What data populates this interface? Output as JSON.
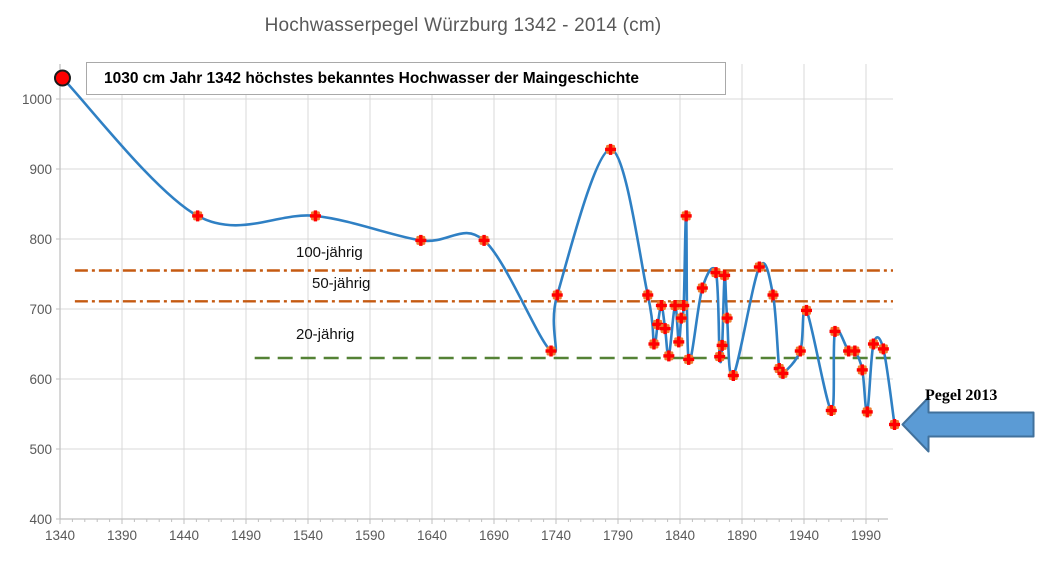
{
  "title": "Hochwasserpegel Würzburg 1342 - 2014 (cm)",
  "annotation": "1030 cm Jahr 1342 höchstes bekanntes Hochwasser der Maingeschichte",
  "arrow": {
    "label": "Pegel 2013"
  },
  "colors": {
    "line": "#2F80C4",
    "marker_fill": "#ED7D31",
    "marker_cross": "#FF0000",
    "first_point_fill": "#FF0000",
    "first_point_stroke": "#1a1a1a",
    "threshold_orange": "#C55A11",
    "threshold_green": "#548235",
    "arrow_fill": "#5B9BD5",
    "arrow_stroke": "#41719C",
    "grid": "#D9D9D9",
    "axis": "#BFBFBF",
    "tick_text": "#595959"
  },
  "chart_data": {
    "type": "line",
    "title": "Hochwasserpegel Würzburg 1342 - 2014 (cm)",
    "series_name": "Hochwasserpegel (cm)",
    "smooth": true,
    "grid": true,
    "xlim": [
      1340,
      2010
    ],
    "ylim": [
      400,
      1050
    ],
    "x_ticks": [
      1340,
      1390,
      1440,
      1490,
      1540,
      1590,
      1640,
      1690,
      1740,
      1790,
      1840,
      1890,
      1940,
      1990
    ],
    "y_ticks": [
      400,
      500,
      600,
      700,
      800,
      900,
      1000
    ],
    "x": [
      1342,
      1451,
      1546,
      1631,
      1682,
      1736,
      1741,
      1784,
      1814,
      1819,
      1822,
      1825,
      1828,
      1831,
      1836,
      1839,
      1841,
      1843,
      1845,
      1847,
      1858,
      1869,
      1872,
      1874,
      1876,
      1878,
      1883,
      1904,
      1915,
      1920,
      1923,
      1937,
      1942,
      1962,
      1965,
      1976,
      1981,
      1987,
      1991,
      1996,
      2004,
      2013
    ],
    "y": [
      1030,
      833,
      833,
      798,
      798,
      640,
      720,
      928,
      720,
      650,
      678,
      705,
      672,
      633,
      705,
      653,
      687,
      705,
      833,
      628,
      730,
      752,
      632,
      648,
      748,
      687,
      605,
      760,
      720,
      615,
      608,
      640,
      698,
      555,
      668,
      640,
      640,
      613,
      553,
      650,
      643,
      535
    ],
    "highlight_point": {
      "year": 1342,
      "value": 1030
    },
    "last_point": {
      "year": 2013,
      "value": 535
    },
    "reference_lines": [
      {
        "label": "100-jährig",
        "value": 755,
        "style": "dashdot",
        "color": "#C55A11",
        "start_year": 1352
      },
      {
        "label": "50-jährig",
        "value": 711,
        "style": "dashdot",
        "color": "#C55A11",
        "start_year": 1352
      },
      {
        "label": "20-jährig",
        "value": 630,
        "style": "dashed",
        "color": "#548235",
        "start_year": 1497
      }
    ]
  }
}
